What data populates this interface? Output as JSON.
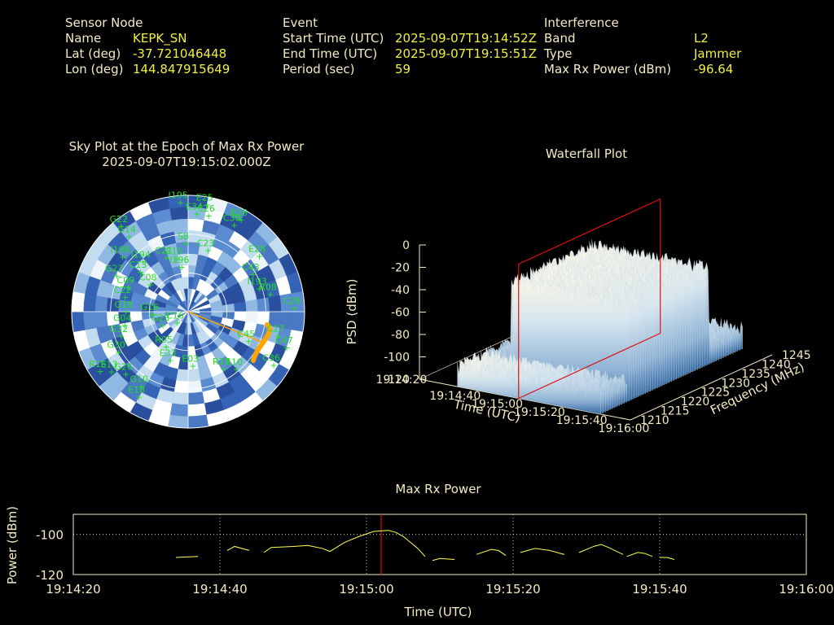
{
  "header": {
    "sensor": {
      "title": "Sensor Node",
      "rows": [
        {
          "label": "Name",
          "value": "KEPK_SN"
        },
        {
          "label": "Lat (deg)",
          "value": "-37.721046448"
        },
        {
          "label": "Lon (deg)",
          "value": "144.847915649"
        }
      ]
    },
    "event": {
      "title": "Event",
      "rows": [
        {
          "label": "Start Time (UTC)",
          "value": "2025-09-07T19:14:52Z"
        },
        {
          "label": "End Time (UTC)",
          "value": "2025-09-07T19:15:51Z"
        },
        {
          "label": "Period (sec)",
          "value": "59"
        }
      ]
    },
    "interference": {
      "title": "Interference",
      "rows": [
        {
          "label": "Band",
          "value": "L2"
        },
        {
          "label": "Type",
          "value": "Jammer"
        },
        {
          "label": "Max Rx Power (dBm)",
          "value": "-96.64"
        }
      ]
    }
  },
  "colors": {
    "label": "#f3ebc4",
    "value": "#f0f040",
    "satellite": "#22dd22",
    "trace": "#ffff55",
    "marker": "#dd1111",
    "track": "#ffa500"
  },
  "chart_data": [
    {
      "type": "scatter",
      "title": "Sky Plot at the Epoch of Max Rx Power",
      "subtitle": "2025-09-07T19:15:02.000Z",
      "satellites": [
        {
          "id": "I195",
          "az": 356,
          "el": 5
        },
        {
          "id": "E25",
          "az": 10,
          "el": 6
        },
        {
          "id": "E34",
          "az": 5,
          "el": 14
        },
        {
          "id": "C26",
          "az": 12,
          "el": 14
        },
        {
          "id": "G22",
          "az": 322,
          "el": 6
        },
        {
          "id": "G14",
          "az": 322,
          "el": 16
        },
        {
          "id": "R26",
          "az": 30,
          "el": 8
        },
        {
          "id": "C38",
          "az": 28,
          "el": 14
        },
        {
          "id": "S8",
          "az": 358,
          "el": 37
        },
        {
          "id": "C23",
          "az": 18,
          "el": 40
        },
        {
          "id": "E28",
          "az": 52,
          "el": 20
        },
        {
          "id": "C29",
          "az": 88,
          "el": 8
        },
        {
          "id": "C43",
          "az": 60,
          "el": 32
        },
        {
          "id": "I193",
          "az": 72,
          "el": 32
        },
        {
          "id": "R08",
          "az": 78,
          "el": 25
        },
        {
          "id": "C27",
          "az": 105,
          "el": 18
        },
        {
          "id": "C47",
          "az": 110,
          "el": 9
        },
        {
          "id": "C36",
          "az": 122,
          "el": 12
        },
        {
          "id": "C45",
          "az": 116,
          "el": 38
        },
        {
          "id": "R17",
          "az": 148,
          "el": 38
        },
        {
          "id": "R10",
          "az": 140,
          "el": 32
        },
        {
          "id": "E03",
          "az": 175,
          "el": 48
        },
        {
          "id": "I194",
          "az": 318,
          "el": 38
        },
        {
          "id": "C13",
          "az": 310,
          "el": 42
        },
        {
          "id": "C21",
          "az": 338,
          "el": 45
        },
        {
          "id": "E15",
          "az": 348,
          "el": 48
        },
        {
          "id": "I196",
          "az": 352,
          "el": 55
        },
        {
          "id": "C08",
          "az": 306,
          "el": 54
        },
        {
          "id": "G27",
          "az": 297,
          "el": 28
        },
        {
          "id": "C09",
          "az": 292,
          "el": 40
        },
        {
          "id": "C22",
          "az": 283,
          "el": 40
        },
        {
          "id": "G18",
          "az": 270,
          "el": 42
        },
        {
          "id": "G04",
          "az": 258,
          "el": 40
        },
        {
          "id": "G32",
          "az": 250,
          "el": 35
        },
        {
          "id": "G16",
          "az": 266,
          "el": 62
        },
        {
          "id": "G23",
          "az": 242,
          "el": 68
        },
        {
          "id": "C16",
          "az": 224,
          "el": 78
        },
        {
          "id": "G30",
          "az": 240,
          "el": 28
        },
        {
          "id": "E33",
          "az": 200,
          "el": 50
        },
        {
          "id": "R05",
          "az": 212,
          "el": 58
        },
        {
          "id": "G26",
          "az": 225,
          "el": 22
        },
        {
          "id": "E13",
          "az": 232,
          "el": 15
        },
        {
          "id": "G10",
          "az": 212,
          "el": 22
        },
        {
          "id": "E18",
          "az": 210,
          "el": 14
        },
        {
          "id": "R15",
          "az": 236,
          "el": 8
        },
        {
          "id": "I199",
          "az": 310,
          "el": 24
        }
      ],
      "polar_rings_el": [
        0,
        30,
        60
      ]
    },
    {
      "type": "area",
      "title": "Waterfall Plot",
      "xlabel": "Time (UTC)",
      "ylabel": "Frequency (MHz)",
      "zlabel": "PSD (dBm)",
      "time_ticks": [
        "19:14:20",
        "19:14:40",
        "19:15:00",
        "19:15:20",
        "19:15:40",
        "19:16:00"
      ],
      "freq_ticks": [
        "1210",
        "1215",
        "1220",
        "1225",
        "1230",
        "1235",
        "1240",
        "1245"
      ],
      "z_ticks": [
        "0",
        "-20",
        "-40",
        "-60",
        "-80",
        "-100",
        "-120"
      ],
      "zlim": [
        -120,
        0
      ],
      "ylim": [
        1210,
        1245
      ],
      "jammer_band_mhz": [
        1217,
        1237
      ],
      "jammer_psd_dbm": -28,
      "noise_psd_dbm": -95
    },
    {
      "type": "line",
      "title": "Max Rx Power",
      "xlabel": "Time (UTC)",
      "ylabel": "Power (dBm)",
      "x_ticks": [
        "19:14:20",
        "19:14:40",
        "19:15:00",
        "19:15:20",
        "19:15:40",
        "19:16:00"
      ],
      "y_ticks": [
        "-100",
        "-120"
      ],
      "xlim_sec": [
        0,
        100
      ],
      "ylim": [
        -120,
        -90
      ],
      "marker_sec": 42,
      "segments": [
        [
          [
            14,
            -111.5
          ],
          [
            17,
            -111
          ]
        ],
        [
          [
            21,
            -108
          ],
          [
            22,
            -106
          ],
          [
            24,
            -108
          ]
        ],
        [
          [
            26,
            -109
          ],
          [
            27,
            -106.5
          ],
          [
            30,
            -106
          ],
          [
            32,
            -105.5
          ],
          [
            34,
            -107
          ],
          [
            35,
            -108.5
          ],
          [
            37,
            -104
          ],
          [
            39,
            -101
          ],
          [
            41,
            -98.5
          ],
          [
            43,
            -98
          ],
          [
            44,
            -99
          ],
          [
            45,
            -101
          ],
          [
            46,
            -104
          ],
          [
            47,
            -107
          ],
          [
            48,
            -111
          ]
        ],
        [
          [
            49,
            -113
          ],
          [
            50,
            -112
          ],
          [
            52,
            -112.5
          ]
        ],
        [
          [
            55,
            -110
          ],
          [
            57,
            -107.5
          ],
          [
            58,
            -108
          ],
          [
            59,
            -110.5
          ]
        ],
        [
          [
            61,
            -109
          ],
          [
            63,
            -107
          ],
          [
            65,
            -108
          ],
          [
            67,
            -110
          ]
        ],
        [
          [
            69,
            -109
          ],
          [
            71,
            -106
          ],
          [
            72,
            -105
          ],
          [
            73,
            -106.5
          ],
          [
            75,
            -110
          ]
        ],
        [
          [
            75.5,
            -111
          ],
          [
            77,
            -109
          ],
          [
            78,
            -109.5
          ],
          [
            79,
            -111
          ]
        ],
        [
          [
            80,
            -111.5
          ],
          [
            81,
            -111.5
          ],
          [
            82,
            -112.5
          ]
        ]
      ]
    }
  ]
}
